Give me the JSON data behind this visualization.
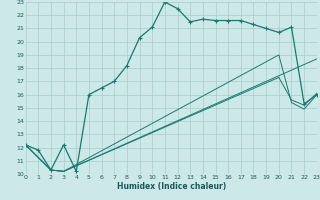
{
  "xlabel": "Humidex (Indice chaleur)",
  "bg_color": "#cce8e8",
  "grid_color": "#aacccc",
  "line_color": "#1a7a6e",
  "xlim": [
    0,
    23
  ],
  "ylim": [
    10,
    23
  ],
  "xticks": [
    0,
    1,
    2,
    3,
    4,
    5,
    6,
    7,
    8,
    9,
    10,
    11,
    12,
    13,
    14,
    15,
    16,
    17,
    18,
    19,
    20,
    21,
    22,
    23
  ],
  "yticks": [
    10,
    11,
    12,
    13,
    14,
    15,
    16,
    17,
    18,
    19,
    20,
    21,
    22,
    23
  ],
  "curve1_x": [
    0,
    1,
    2,
    3,
    4,
    5,
    6,
    7,
    8,
    9,
    10,
    11,
    12,
    13,
    14,
    15,
    16,
    17,
    18,
    19,
    20,
    21,
    22,
    23
  ],
  "curve1_y": [
    12.2,
    11.8,
    10.3,
    12.2,
    10.2,
    16.0,
    16.5,
    17.0,
    18.2,
    20.3,
    21.1,
    23.0,
    22.5,
    21.5,
    21.7,
    21.6,
    21.6,
    21.6,
    21.3,
    21.0,
    20.7,
    21.1,
    15.3,
    16.0
  ],
  "curve2_x": [
    0,
    2,
    3,
    23
  ],
  "curve2_y": [
    12.2,
    10.3,
    10.2,
    18.7
  ],
  "curve3_x": [
    0,
    2,
    3,
    20,
    21,
    22,
    23
  ],
  "curve3_y": [
    12.2,
    10.3,
    10.2,
    19.0,
    15.4,
    14.9,
    16.0
  ],
  "curve4_x": [
    0,
    2,
    3,
    20,
    21,
    22,
    23
  ],
  "curve4_y": [
    12.2,
    10.3,
    10.2,
    17.3,
    15.6,
    15.2,
    16.1
  ]
}
